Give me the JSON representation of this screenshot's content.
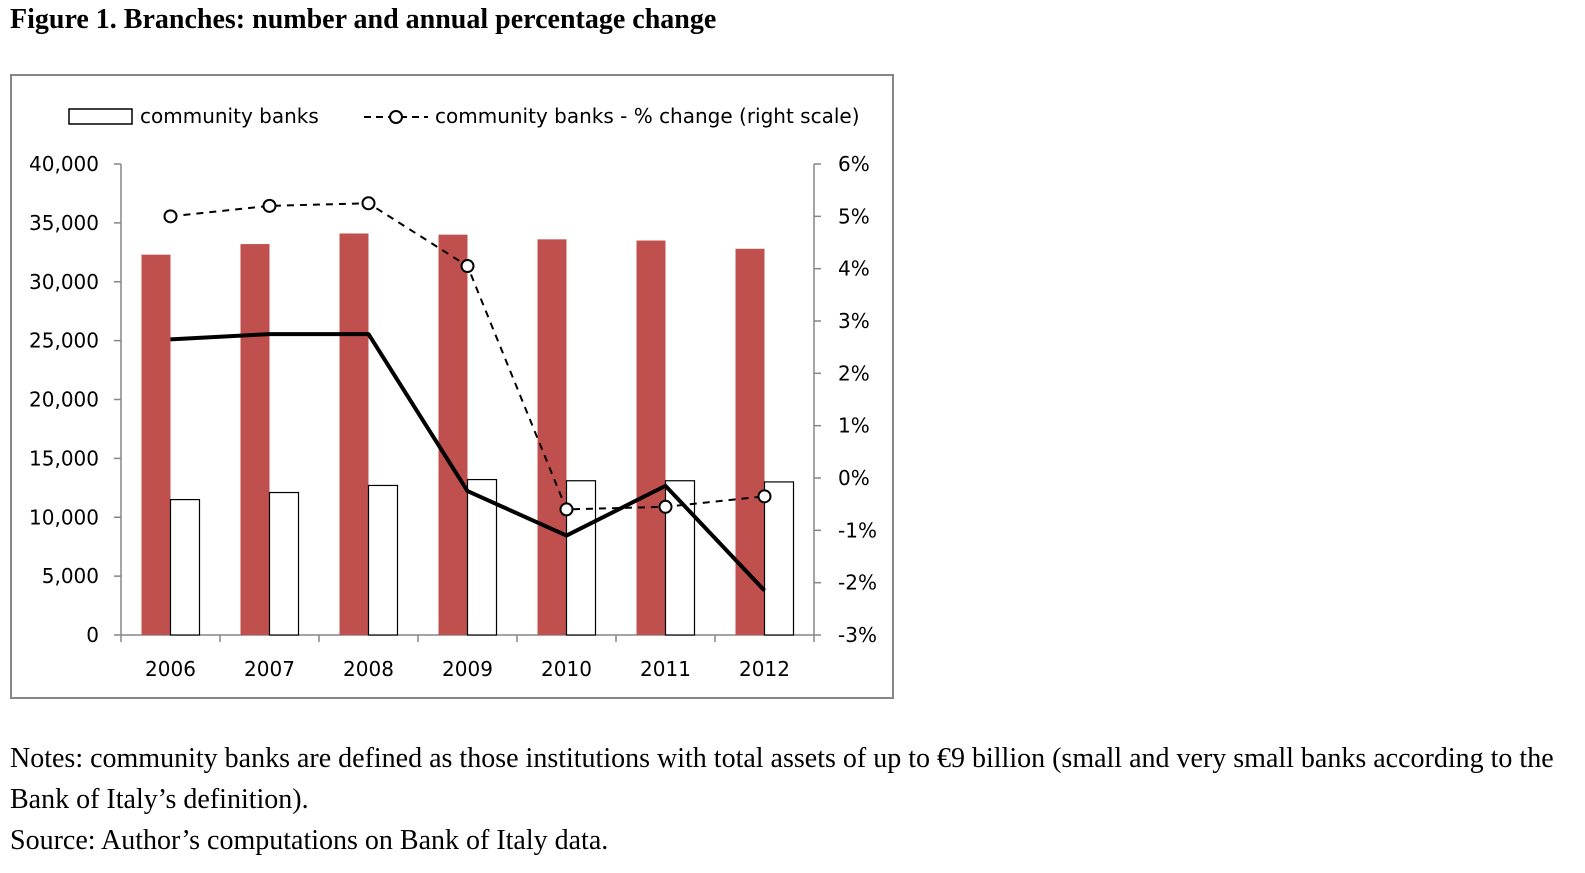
{
  "figure": {
    "title": "Figure 1. Branches: number and annual percentage change",
    "notes": "Notes: community banks are defined as those institutions with total assets of up to €9 billion (small and very small banks according to the Bank of Italy’s definition).",
    "source": "Source: Author’s computations on Bank of Italy data."
  },
  "chart_data": {
    "type": "bar",
    "categories": [
      "2006",
      "2007",
      "2008",
      "2009",
      "2010",
      "2011",
      "2012"
    ],
    "y_left": {
      "ylim": [
        0,
        40000
      ],
      "ticks": [
        "0",
        "5,000",
        "10,000",
        "15,000",
        "20,000",
        "25,000",
        "30,000",
        "35,000",
        "40,000"
      ]
    },
    "y_right": {
      "ylim": [
        -3,
        6
      ],
      "ticks": [
        "-3%",
        "-2%",
        "-1%",
        "0%",
        "1%",
        "2%",
        "3%",
        "4%",
        "5%",
        "6%"
      ]
    },
    "series": [
      {
        "type": "bar",
        "axis": "left",
        "color": "#c0504d",
        "values": [
          32300,
          33200,
          34100,
          34000,
          33600,
          33500,
          32800
        ]
      },
      {
        "type": "bar",
        "axis": "left",
        "name": "community banks",
        "color": "#ffffff",
        "values": [
          11500,
          12100,
          12700,
          13200,
          13100,
          13100,
          13000
        ]
      },
      {
        "type": "line",
        "axis": "right",
        "color": "#000000",
        "dashed": false,
        "values": [
          2.65,
          2.75,
          2.75,
          -0.25,
          -1.1,
          -0.15,
          -2.15
        ]
      },
      {
        "type": "line",
        "axis": "right",
        "name": "community banks - % change (right scale)",
        "color": "#000000",
        "dashed": true,
        "marker": "circle",
        "values": [
          5.0,
          5.2,
          5.25,
          4.05,
          -0.6,
          -0.55,
          -0.35
        ]
      }
    ],
    "legend_position": "top",
    "grid": false
  }
}
